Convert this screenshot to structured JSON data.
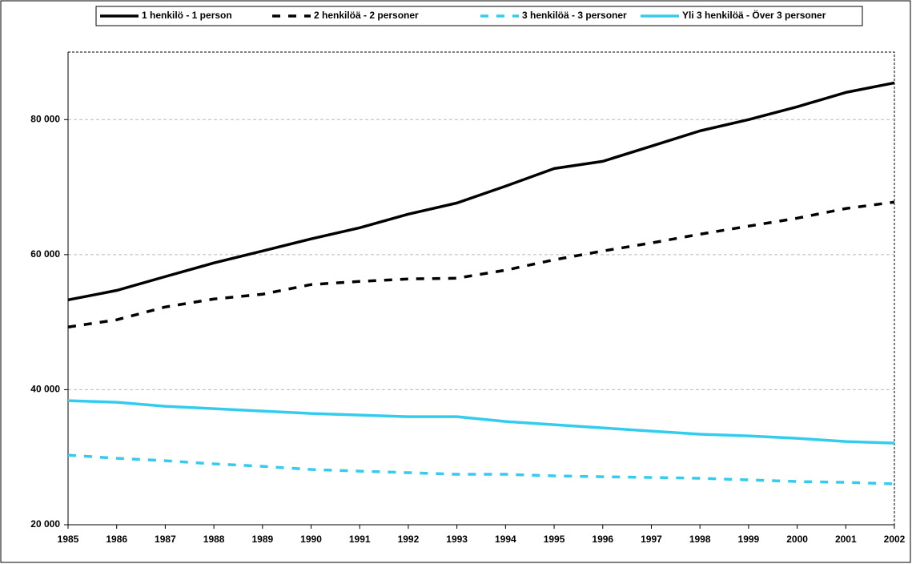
{
  "chart_data": {
    "type": "line",
    "x": [
      1985,
      1986,
      1987,
      1988,
      1989,
      1990,
      1991,
      1992,
      1993,
      1994,
      1995,
      1996,
      1997,
      1998,
      1999,
      2000,
      2001,
      2002
    ],
    "series": [
      {
        "name": "1 henkilö - 1 person",
        "color": "#000000",
        "style": "solid",
        "values": [
          53300,
          54700,
          56750,
          58770,
          60540,
          62330,
          63980,
          66000,
          67650,
          70140,
          72750,
          73820,
          76070,
          78330,
          80000,
          81900,
          84020,
          85440
        ]
      },
      {
        "name": "2 henkilöä - 2 personer",
        "color": "#000000",
        "style": "dashed",
        "values": [
          49280,
          50350,
          52250,
          53430,
          54140,
          55570,
          56040,
          56400,
          56510,
          57700,
          59240,
          60540,
          61730,
          63030,
          64220,
          65400,
          66830,
          67780
        ]
      },
      {
        "name": "3 henkilöä - 3 personer",
        "color": "#33ccee",
        "style": "dashed",
        "values": [
          30310,
          29840,
          29480,
          29010,
          28650,
          28180,
          27940,
          27710,
          27470,
          27470,
          27230,
          27110,
          27000,
          26880,
          26640,
          26400,
          26280,
          26050
        ]
      },
      {
        "name": "Yli 3 henkilöä - Över 3 personer",
        "color": "#33ccee",
        "style": "solid",
        "values": [
          38380,
          38140,
          37540,
          37190,
          36830,
          36480,
          36240,
          36000,
          36000,
          35290,
          34820,
          34340,
          33870,
          33400,
          33160,
          32800,
          32330,
          32090
        ]
      }
    ],
    "xlim": [
      1985,
      2002
    ],
    "xticks": [
      1985,
      1986,
      1987,
      1988,
      1989,
      1990,
      1991,
      1992,
      1993,
      1994,
      1995,
      1996,
      1997,
      1998,
      1999,
      2000,
      2001,
      2002
    ],
    "ylim": [
      20000,
      90000
    ],
    "yticks": [
      {
        "value": 20000,
        "label": "20 000"
      },
      {
        "value": 40000,
        "label": "40 000"
      },
      {
        "value": 60000,
        "label": "60 000"
      },
      {
        "value": 80000,
        "label": "80 000"
      }
    ],
    "grid": true,
    "legend": "top"
  }
}
